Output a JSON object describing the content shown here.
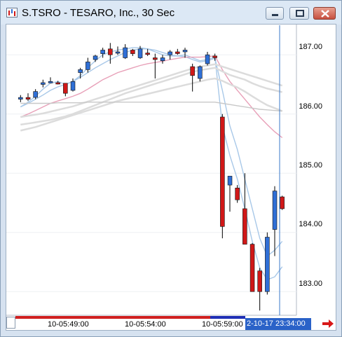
{
  "window": {
    "title": "S.TSRO - TESARO, Inc., 30 Sec",
    "icon": "chart-app-icon",
    "buttons": [
      "minimize-icon",
      "restore-icon",
      "close-icon"
    ]
  },
  "colors": {
    "up_candle": "#2f6fd6",
    "down_candle": "#d01818",
    "ma_fast": "#a8c8e8",
    "ma_mid": "#e8a0b8",
    "ma_slow": "#dcdcdc",
    "ma_slowest": "#c8c8c8",
    "cursor_line": "#3a78c8",
    "time_highlight": "#2a62c8"
  },
  "price_axis": {
    "labels": [
      "187.00",
      "186.00",
      "185.00",
      "184.00",
      "183.00"
    ]
  },
  "time_axis": {
    "labels": [
      "10-05:49:00",
      "10-05:54:00",
      "10-05:59:00"
    ],
    "cursor_time": "2-10-17 23:34:00"
  },
  "chart_data": {
    "type": "candlestick",
    "y_range": [
      182.6,
      187.5
    ],
    "candles": [
      {
        "o": 186.25,
        "h": 186.32,
        "l": 186.2,
        "c": 186.28
      },
      {
        "o": 186.28,
        "h": 186.35,
        "l": 186.22,
        "c": 186.25
      },
      {
        "o": 186.28,
        "h": 186.42,
        "l": 186.25,
        "c": 186.38
      },
      {
        "o": 186.5,
        "h": 186.58,
        "l": 186.45,
        "c": 186.53
      },
      {
        "o": 186.55,
        "h": 186.62,
        "l": 186.52,
        "c": 186.55
      },
      {
        "o": 186.53,
        "h": 186.56,
        "l": 186.5,
        "c": 186.52
      },
      {
        "o": 186.52,
        "h": 186.52,
        "l": 186.3,
        "c": 186.35
      },
      {
        "o": 186.4,
        "h": 186.6,
        "l": 186.38,
        "c": 186.55
      },
      {
        "o": 186.7,
        "h": 186.78,
        "l": 186.6,
        "c": 186.75
      },
      {
        "o": 186.75,
        "h": 186.95,
        "l": 186.7,
        "c": 186.88
      },
      {
        "o": 186.92,
        "h": 187.0,
        "l": 186.88,
        "c": 186.98
      },
      {
        "o": 187.02,
        "h": 187.12,
        "l": 186.95,
        "c": 187.08
      },
      {
        "o": 187.1,
        "h": 187.2,
        "l": 186.85,
        "c": 187.0
      },
      {
        "o": 187.03,
        "h": 187.14,
        "l": 187.0,
        "c": 187.05
      },
      {
        "o": 186.95,
        "h": 187.18,
        "l": 186.93,
        "c": 187.12
      },
      {
        "o": 187.08,
        "h": 187.1,
        "l": 186.98,
        "c": 187.02
      },
      {
        "o": 186.95,
        "h": 187.15,
        "l": 186.93,
        "c": 187.1
      },
      {
        "o": 187.03,
        "h": 187.1,
        "l": 186.98,
        "c": 187.02
      },
      {
        "o": 186.95,
        "h": 187.02,
        "l": 186.6,
        "c": 186.92
      },
      {
        "o": 186.9,
        "h": 187.0,
        "l": 186.85,
        "c": 186.95
      },
      {
        "o": 187.0,
        "h": 187.08,
        "l": 186.92,
        "c": 187.05
      },
      {
        "o": 187.05,
        "h": 187.1,
        "l": 187.0,
        "c": 187.02
      },
      {
        "o": 187.05,
        "h": 187.12,
        "l": 186.95,
        "c": 187.08
      },
      {
        "o": 186.8,
        "h": 186.85,
        "l": 186.38,
        "c": 186.65
      },
      {
        "o": 186.6,
        "h": 186.82,
        "l": 186.55,
        "c": 186.8
      },
      {
        "o": 186.85,
        "h": 187.05,
        "l": 186.82,
        "c": 187.0
      },
      {
        "o": 186.98,
        "h": 187.02,
        "l": 186.9,
        "c": 186.95
      },
      {
        "o": 185.95,
        "h": 186.0,
        "l": 183.9,
        "c": 184.1
      },
      {
        "o": 184.8,
        "h": 184.95,
        "l": 184.35,
        "c": 184.95
      },
      {
        "o": 184.75,
        "h": 184.8,
        "l": 184.5,
        "c": 184.55
      },
      {
        "o": 184.4,
        "h": 185.0,
        "l": 183.8,
        "c": 183.8
      },
      {
        "o": 183.8,
        "h": 183.82,
        "l": 183.0,
        "c": 183.0
      },
      {
        "o": 183.35,
        "h": 183.4,
        "l": 182.68,
        "c": 183.0
      },
      {
        "o": 183.0,
        "h": 184.0,
        "l": 182.95,
        "c": 183.92
      },
      {
        "o": 184.05,
        "h": 184.78,
        "l": 183.6,
        "c": 184.7
      },
      {
        "o": 184.6,
        "h": 184.62,
        "l": 184.38,
        "c": 184.4
      }
    ],
    "moving_averages": [
      {
        "values": [
          186.12,
          186.18,
          186.25,
          186.32,
          186.4,
          186.46,
          186.5,
          186.55,
          186.62,
          186.7,
          186.78,
          186.85,
          186.92,
          186.98,
          187.04,
          187.08,
          187.1,
          187.1,
          187.08,
          187.04,
          187.0,
          186.98,
          186.97,
          186.92,
          186.88,
          186.9,
          186.94,
          186.4,
          185.8,
          185.4,
          184.9,
          184.4,
          183.9,
          183.6,
          183.7,
          183.85
        ]
      },
      {
        "values": [
          186.12,
          186.2,
          186.3,
          186.42,
          186.52,
          186.55,
          186.5,
          186.55,
          186.65,
          186.78,
          186.9,
          187.0,
          187.05,
          187.08,
          187.1,
          187.12,
          187.12,
          187.1,
          187.05,
          187.0,
          186.98,
          186.98,
          187.0,
          186.95,
          186.9,
          186.92,
          186.96,
          185.8,
          185.3,
          184.9,
          184.4,
          183.85,
          183.4,
          183.2,
          183.25,
          183.42
        ]
      },
      {
        "values": [
          185.95,
          186.0,
          186.06,
          186.12,
          186.18,
          186.22,
          186.26,
          186.3,
          186.35,
          186.42,
          186.5,
          186.58,
          186.64,
          186.7,
          186.74,
          186.78,
          186.82,
          186.85,
          186.87,
          186.89,
          186.92,
          186.94,
          186.96,
          186.96,
          186.96,
          186.97,
          186.98,
          186.75,
          186.55,
          186.4,
          186.25,
          186.1,
          185.95,
          185.82,
          185.7,
          185.6
        ]
      },
      {
        "values": [
          185.72,
          185.75,
          185.78,
          185.82,
          185.86,
          185.9,
          185.94,
          185.98,
          186.02,
          186.06,
          186.1,
          186.14,
          186.18,
          186.22,
          186.25,
          186.28,
          186.31,
          186.34,
          186.37,
          186.4,
          186.43,
          186.46,
          186.49,
          186.52,
          186.55,
          186.58,
          186.6,
          186.56,
          186.5,
          186.45,
          186.38,
          186.3,
          186.22,
          186.15,
          186.1,
          186.05
        ]
      },
      {
        "values": [
          185.82,
          185.84,
          185.86,
          185.88,
          185.9,
          185.93,
          185.96,
          186.0,
          186.05,
          186.1,
          186.15,
          186.2,
          186.25,
          186.3,
          186.35,
          186.39,
          186.43,
          186.47,
          186.51,
          186.55,
          186.59,
          186.63,
          186.67,
          186.71,
          186.74,
          186.76,
          186.78,
          186.72,
          186.66,
          186.62,
          186.58,
          186.52,
          186.47,
          186.43,
          186.4,
          186.37
        ]
      },
      {
        "values": [
          185.95,
          185.97,
          185.99,
          186.01,
          186.04,
          186.07,
          186.1,
          186.13,
          186.17,
          186.21,
          186.25,
          186.29,
          186.33,
          186.37,
          186.41,
          186.45,
          186.49,
          186.53,
          186.57,
          186.61,
          186.65,
          186.69,
          186.73,
          186.77,
          186.8,
          186.82,
          186.84,
          186.8,
          186.76,
          186.72,
          186.68,
          186.64,
          186.6,
          186.56,
          186.52,
          186.48
        ]
      },
      {
        "values": [
          186.18,
          186.18,
          186.18,
          186.18,
          186.18,
          186.19,
          186.19,
          186.19,
          186.19,
          186.2,
          186.2,
          186.2,
          186.2,
          186.2,
          186.2,
          186.2,
          186.2,
          186.2,
          186.2,
          186.2,
          186.2,
          186.2,
          186.2,
          186.2,
          186.2,
          186.2,
          186.2,
          186.18,
          186.16,
          186.14,
          186.12,
          186.1,
          186.08,
          186.07,
          186.06,
          186.05
        ]
      }
    ]
  }
}
